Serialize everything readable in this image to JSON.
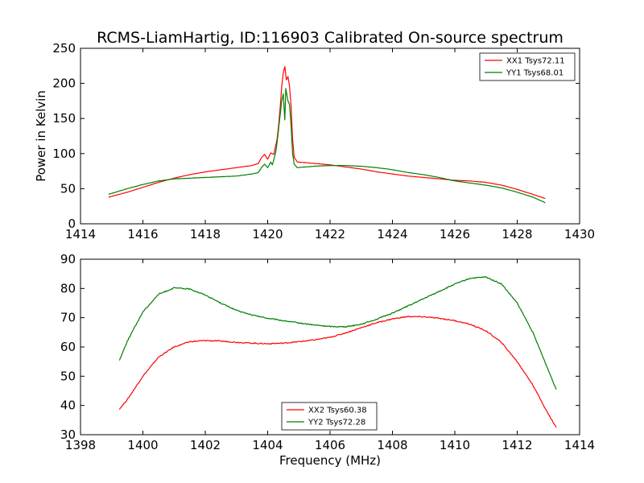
{
  "figure": {
    "title": "RCMS-LiamHartig, ID:116903 Calibrated On-source spectrum"
  },
  "chart_data": [
    {
      "type": "line",
      "title": "RCMS-LiamHartig, ID:116903 Calibrated On-source spectrum",
      "xlabel": "",
      "ylabel": "Power in Kelvin",
      "xlim": [
        1414,
        1430
      ],
      "ylim": [
        0,
        250
      ],
      "xticks": [
        1414,
        1416,
        1418,
        1420,
        1422,
        1424,
        1426,
        1428,
        1430
      ],
      "yticks": [
        0,
        50,
        100,
        150,
        200,
        250
      ],
      "legend_position": "top-right",
      "grid": false,
      "series": [
        {
          "name": "XX1 Tsys72.11",
          "color": "#ff0000",
          "points": [
            [
              1414.9,
              38
            ],
            [
              1415.5,
              45
            ],
            [
              1416,
              52
            ],
            [
              1416.5,
              59
            ],
            [
              1417,
              65
            ],
            [
              1417.5,
              70
            ],
            [
              1418,
              74
            ],
            [
              1418.5,
              77
            ],
            [
              1419,
              80
            ],
            [
              1419.5,
              83
            ],
            [
              1419.7,
              86
            ],
            [
              1419.8,
              94
            ],
            [
              1419.9,
              99
            ],
            [
              1420,
              92
            ],
            [
              1420.1,
              101
            ],
            [
              1420.2,
              99
            ],
            [
              1420.25,
              110
            ],
            [
              1420.3,
              120
            ],
            [
              1420.35,
              140
            ],
            [
              1420.4,
              165
            ],
            [
              1420.45,
              195
            ],
            [
              1420.5,
              215
            ],
            [
              1420.55,
              224
            ],
            [
              1420.6,
              205
            ],
            [
              1420.65,
              210
            ],
            [
              1420.7,
              196
            ],
            [
              1420.75,
              168
            ],
            [
              1420.8,
              120
            ],
            [
              1420.85,
              95
            ],
            [
              1420.95,
              88
            ],
            [
              1421.5,
              86
            ],
            [
              1422,
              84
            ],
            [
              1422.5,
              81
            ],
            [
              1423,
              78
            ],
            [
              1423.5,
              74
            ],
            [
              1424,
              71
            ],
            [
              1424.5,
              68
            ],
            [
              1425,
              66
            ],
            [
              1425.5,
              64
            ],
            [
              1426,
              62
            ],
            [
              1426.5,
              61
            ],
            [
              1427,
              59
            ],
            [
              1427.5,
              55
            ],
            [
              1428,
              49
            ],
            [
              1428.5,
              42
            ],
            [
              1428.9,
              36
            ]
          ]
        },
        {
          "name": "YY1 Tsys68.01",
          "color": "#007f00",
          "points": [
            [
              1414.9,
              42
            ],
            [
              1415.5,
              50
            ],
            [
              1416,
              56
            ],
            [
              1416.5,
              61
            ],
            [
              1417,
              64
            ],
            [
              1417.5,
              65
            ],
            [
              1418,
              66
            ],
            [
              1418.5,
              67
            ],
            [
              1419,
              68
            ],
            [
              1419.5,
              71
            ],
            [
              1419.7,
              73
            ],
            [
              1419.8,
              80
            ],
            [
              1419.9,
              85
            ],
            [
              1420,
              80
            ],
            [
              1420.1,
              88
            ],
            [
              1420.15,
              84
            ],
            [
              1420.2,
              92
            ],
            [
              1420.25,
              100
            ],
            [
              1420.3,
              115
            ],
            [
              1420.35,
              135
            ],
            [
              1420.4,
              155
            ],
            [
              1420.45,
              175
            ],
            [
              1420.5,
              185
            ],
            [
              1420.55,
              148
            ],
            [
              1420.58,
              193
            ],
            [
              1420.65,
              175
            ],
            [
              1420.7,
              170
            ],
            [
              1420.75,
              140
            ],
            [
              1420.8,
              100
            ],
            [
              1420.85,
              85
            ],
            [
              1420.95,
              80
            ],
            [
              1421.5,
              82
            ],
            [
              1422,
              83
            ],
            [
              1422.5,
              83
            ],
            [
              1423,
              82
            ],
            [
              1423.5,
              80
            ],
            [
              1424,
              77
            ],
            [
              1424.5,
              73
            ],
            [
              1425,
              70
            ],
            [
              1425.5,
              66
            ],
            [
              1426,
              61
            ],
            [
              1426.5,
              58
            ],
            [
              1427,
              55
            ],
            [
              1427.5,
              51
            ],
            [
              1428,
              45
            ],
            [
              1428.5,
              38
            ],
            [
              1428.9,
              30
            ]
          ]
        }
      ]
    },
    {
      "type": "line",
      "title": "",
      "xlabel": "Frequency (MHz)",
      "ylabel": "",
      "xlim": [
        1398,
        1414
      ],
      "ylim": [
        30,
        90
      ],
      "xticks": [
        1398,
        1400,
        1402,
        1404,
        1406,
        1408,
        1410,
        1412,
        1414
      ],
      "yticks": [
        30,
        40,
        50,
        60,
        70,
        80,
        90
      ],
      "legend_position": "bottom-center",
      "grid": false,
      "series": [
        {
          "name": "XX2 Tsys60.38",
          "color": "#ff0000",
          "points": [
            [
              1399.25,
              38.8
            ],
            [
              1399.5,
              42
            ],
            [
              1400,
              50
            ],
            [
              1400.5,
              56.5
            ],
            [
              1401,
              60
            ],
            [
              1401.5,
              61.8
            ],
            [
              1402,
              62.2
            ],
            [
              1402.5,
              62
            ],
            [
              1403,
              61.6
            ],
            [
              1403.5,
              61.3
            ],
            [
              1404,
              61.1
            ],
            [
              1404.5,
              61.3
            ],
            [
              1405,
              61.8
            ],
            [
              1405.5,
              62.4
            ],
            [
              1406,
              63.3
            ],
            [
              1406.5,
              64.8
            ],
            [
              1407,
              66.6
            ],
            [
              1407.5,
              68.3
            ],
            [
              1408,
              69.6
            ],
            [
              1408.5,
              70.4
            ],
            [
              1409,
              70.3
            ],
            [
              1409.5,
              69.8
            ],
            [
              1410,
              69
            ],
            [
              1410.5,
              67.7
            ],
            [
              1411,
              65.5
            ],
            [
              1411.5,
              61.5
            ],
            [
              1412,
              55
            ],
            [
              1412.5,
              47
            ],
            [
              1413,
              37
            ],
            [
              1413.25,
              32.5
            ]
          ]
        },
        {
          "name": "YY2 Tsys72.28",
          "color": "#007f00",
          "points": [
            [
              1399.25,
              55.5
            ],
            [
              1399.5,
              62
            ],
            [
              1400,
              72
            ],
            [
              1400.5,
              78
            ],
            [
              1401,
              80.2
            ],
            [
              1401.5,
              79.8
            ],
            [
              1402,
              77.8
            ],
            [
              1402.5,
              75
            ],
            [
              1403,
              72.5
            ],
            [
              1403.5,
              70.9
            ],
            [
              1404,
              69.8
            ],
            [
              1404.5,
              69
            ],
            [
              1405,
              68.2
            ],
            [
              1405.5,
              67.5
            ],
            [
              1406,
              67
            ],
            [
              1406.5,
              66.9
            ],
            [
              1407,
              67.8
            ],
            [
              1407.5,
              69.5
            ],
            [
              1408,
              71.6
            ],
            [
              1408.5,
              74
            ],
            [
              1409,
              76.5
            ],
            [
              1409.5,
              79
            ],
            [
              1410,
              81.5
            ],
            [
              1410.5,
              83.5
            ],
            [
              1411,
              83.9
            ],
            [
              1411.5,
              81.5
            ],
            [
              1412,
              75
            ],
            [
              1412.5,
              65
            ],
            [
              1413,
              52
            ],
            [
              1413.25,
              45.5
            ]
          ]
        }
      ]
    }
  ]
}
